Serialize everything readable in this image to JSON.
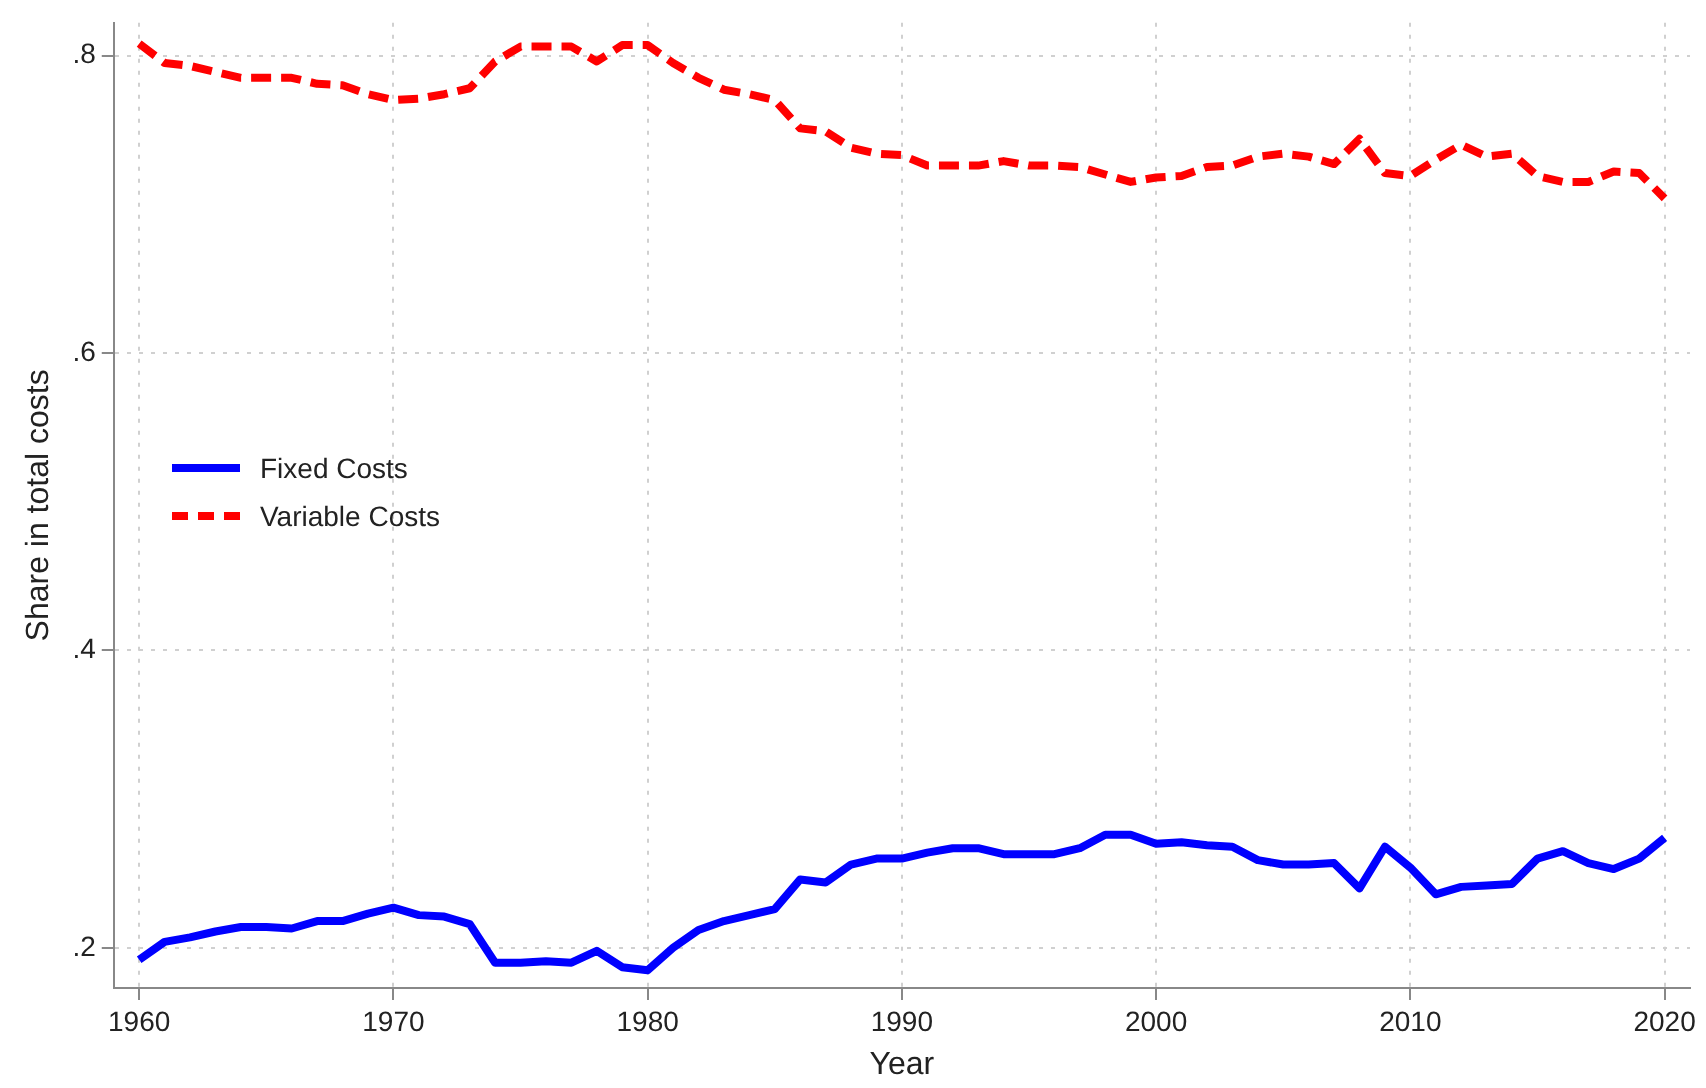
{
  "chart_data": {
    "type": "line",
    "xlabel": "Year",
    "ylabel": "Share in total costs",
    "x": [
      1960,
      1961,
      1962,
      1963,
      1964,
      1965,
      1966,
      1967,
      1968,
      1969,
      1970,
      1971,
      1972,
      1973,
      1974,
      1975,
      1976,
      1977,
      1978,
      1979,
      1980,
      1981,
      1982,
      1983,
      1984,
      1985,
      1986,
      1987,
      1988,
      1989,
      1990,
      1991,
      1992,
      1993,
      1994,
      1995,
      1996,
      1997,
      1998,
      1999,
      2000,
      2001,
      2002,
      2003,
      2004,
      2005,
      2006,
      2007,
      2008,
      2009,
      2010,
      2011,
      2012,
      2013,
      2014,
      2015,
      2016,
      2017,
      2018,
      2019,
      2020
    ],
    "series": [
      {
        "name": "Fixed Costs",
        "color": "#0000ff",
        "line_style": "solid",
        "values": [
          0.192,
          0.204,
          0.207,
          0.211,
          0.214,
          0.214,
          0.213,
          0.218,
          0.218,
          0.223,
          0.227,
          0.222,
          0.221,
          0.216,
          0.19,
          0.19,
          0.191,
          0.19,
          0.198,
          0.187,
          0.185,
          0.2,
          0.212,
          0.218,
          0.222,
          0.226,
          0.246,
          0.244,
          0.256,
          0.26,
          0.26,
          0.264,
          0.267,
          0.267,
          0.263,
          0.263,
          0.263,
          0.267,
          0.276,
          0.276,
          0.27,
          0.271,
          0.269,
          0.268,
          0.259,
          0.256,
          0.256,
          0.257,
          0.24,
          0.268,
          0.254,
          0.236,
          0.241,
          0.242,
          0.243,
          0.26,
          0.265,
          0.257,
          0.253,
          0.26,
          0.274
        ]
      },
      {
        "name": "Variable Costs",
        "color": "#ff0000",
        "line_style": "dashed",
        "values": [
          0.808,
          0.795,
          0.793,
          0.789,
          0.785,
          0.785,
          0.785,
          0.781,
          0.78,
          0.774,
          0.77,
          0.771,
          0.774,
          0.778,
          0.796,
          0.806,
          0.806,
          0.806,
          0.796,
          0.807,
          0.807,
          0.795,
          0.785,
          0.777,
          0.774,
          0.77,
          0.751,
          0.749,
          0.738,
          0.734,
          0.733,
          0.726,
          0.726,
          0.726,
          0.729,
          0.726,
          0.726,
          0.725,
          0.72,
          0.715,
          0.718,
          0.719,
          0.725,
          0.726,
          0.732,
          0.734,
          0.732,
          0.727,
          0.744,
          0.721,
          0.719,
          0.73,
          0.74,
          0.732,
          0.734,
          0.719,
          0.715,
          0.715,
          0.722,
          0.721,
          0.704
        ]
      }
    ],
    "xlim": [
      1959,
      2021
    ],
    "xticks": [
      1960,
      1970,
      1980,
      1990,
      2000,
      2010,
      2020
    ],
    "ylim": [
      0.173,
      0.822
    ],
    "yticks": [
      {
        "value": 0.2,
        "label": ".2"
      },
      {
        "value": 0.4,
        "label": ".4"
      },
      {
        "value": 0.6,
        "label": ".6"
      },
      {
        "value": 0.8,
        "label": ".8"
      }
    ],
    "grid": true,
    "legend": "left",
    "marker": "none"
  }
}
